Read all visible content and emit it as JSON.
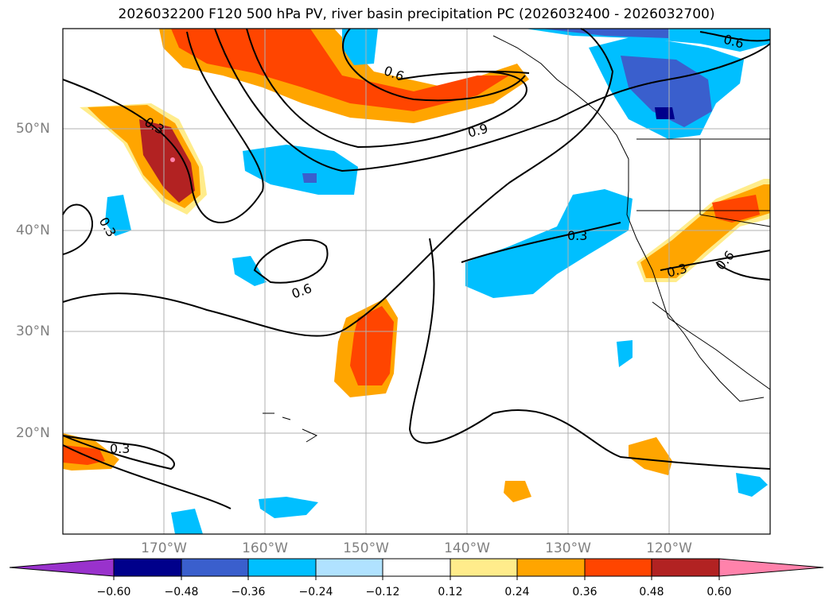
{
  "title": "2026032200 F120 500 hPa PV, river basin precipitation PC (2026032400 - 2026032700)",
  "lat_labels": [
    "50°N",
    "40°N",
    "30°N",
    "20°N"
  ],
  "lon_labels": [
    "170°W",
    "160°W",
    "150°W",
    "140°W",
    "130°W",
    "120°W"
  ],
  "contour_labels": [
    "0.3",
    "0.6",
    "0.9",
    "0.6",
    "0.3",
    "0.6",
    "0.3",
    "0.3",
    "0.3",
    "0.6"
  ],
  "colorbar": {
    "ticks": [
      "−0.60",
      "−0.48",
      "−0.36",
      "−0.24",
      "−0.12",
      "0.12",
      "0.24",
      "0.36",
      "0.48",
      "0.60"
    ],
    "colors": [
      "#9932cc",
      "#00008b",
      "#3a5fcd",
      "#00bfff",
      "#b0e2ff",
      "#ffffff",
      "#ffec8b",
      "#ffa500",
      "#ff4500",
      "#b22222",
      "#ff82ab"
    ]
  },
  "colors": {
    "grid": "#b0b0b0",
    "axis_label": "#7f7f7f"
  }
}
